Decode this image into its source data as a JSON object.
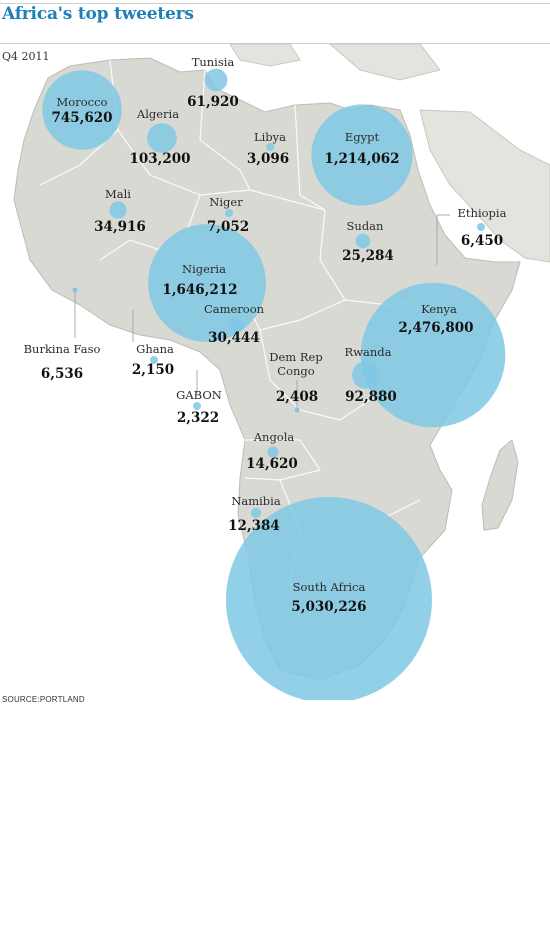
{
  "header": {
    "title": "Africa's top tweeters",
    "subtitle": "Q4 2011"
  },
  "source": "SOURCE:PORTLAND",
  "colors": {
    "title": "#1d7fb8",
    "bubble": "#7ec8e3",
    "land": "#d9d9d4",
    "water": "#ffffff"
  },
  "chart_data": {
    "type": "bubble-map",
    "title": "Africa's top tweeters",
    "subtitle": "Q4 2011",
    "series": [
      {
        "country": "Morocco",
        "value": "745,620",
        "count": 745620
      },
      {
        "country": "Algeria",
        "value": "103,200",
        "count": 103200
      },
      {
        "country": "Tunisia",
        "value": "61,920",
        "count": 61920
      },
      {
        "country": "Libya",
        "value": "3,096",
        "count": 3096
      },
      {
        "country": "Egypt",
        "value": "1,214,062",
        "count": 1214062
      },
      {
        "country": "Mali",
        "value": "34,916",
        "count": 34916
      },
      {
        "country": "Niger",
        "value": "7,052",
        "count": 7052
      },
      {
        "country": "Sudan",
        "value": "25,284",
        "count": 25284
      },
      {
        "country": "Ethiopia",
        "value": "6,450",
        "count": 6450
      },
      {
        "country": "Nigeria",
        "value": "1,646,212",
        "count": 1646212
      },
      {
        "country": "Cameroon",
        "value": "30,444",
        "count": 30444
      },
      {
        "country": "Kenya",
        "value": "2,476,800",
        "count": 2476800
      },
      {
        "country": "Burkina Faso",
        "value": "6,536",
        "count": 6536
      },
      {
        "country": "Ghana",
        "value": "2,150",
        "count": 2150
      },
      {
        "country": "Dem Rep Congo",
        "value": "2,408",
        "count": 2408
      },
      {
        "country": "Rwanda",
        "value": "92,880",
        "count": 92880
      },
      {
        "country": "GABON",
        "value": "2,322",
        "count": 2322
      },
      {
        "country": "Angola",
        "value": "14,620",
        "count": 14620
      },
      {
        "country": "Namibia",
        "value": "12,384",
        "count": 12384
      },
      {
        "country": "South Africa",
        "value": "5,030,226",
        "count": 5030226
      }
    ]
  }
}
